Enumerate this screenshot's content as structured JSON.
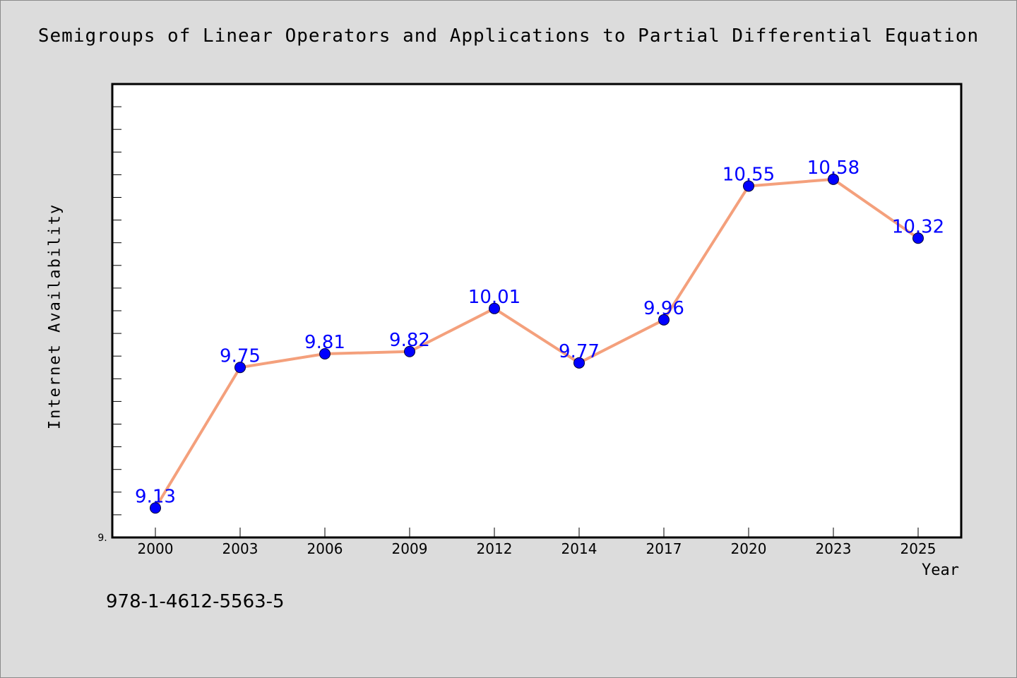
{
  "title": "Semigroups of Linear Operators and Applications to Partial Differential Equation",
  "footnote": "978-1-4612-5563-5",
  "colors": {
    "background": "#dcdcdc",
    "plot_background": "#ffffff",
    "line": "#f4a07c",
    "marker": "#0000ff",
    "data_label": "#0000ff"
  },
  "chart_data": {
    "type": "line",
    "xlabel": "Year",
    "ylabel": "Internet Availability",
    "categories": [
      "2000",
      "2003",
      "2006",
      "2009",
      "2012",
      "2014",
      "2017",
      "2020",
      "2023",
      "2025"
    ],
    "values": [
      9.13,
      9.75,
      9.81,
      9.82,
      10.01,
      9.77,
      9.96,
      10.55,
      10.58,
      10.32
    ],
    "data_labels": [
      "9.13",
      "9.75",
      "9.81",
      "9.82",
      "10.01",
      "9.77",
      "9.96",
      "10.55",
      "10.58",
      "10.32"
    ],
    "ylim": [
      9.0,
      11.0
    ],
    "y_tick_label": "9.",
    "y_minor_ticks": 20,
    "grid": false,
    "legend": "none"
  }
}
